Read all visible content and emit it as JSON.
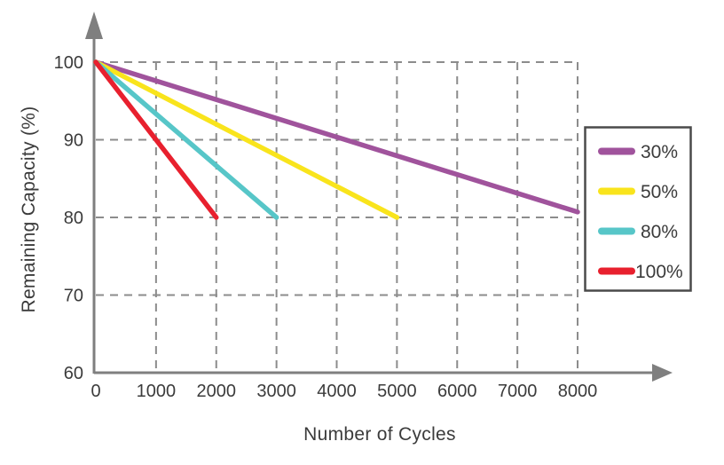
{
  "page": {
    "background": "#ffffff"
  },
  "chart_data": {
    "type": "line",
    "title": "",
    "xlabel": "Number of Cycles",
    "ylabel": "Remaining Capacity (%)",
    "xlim": [
      0,
      8000
    ],
    "ylim": [
      60,
      100
    ],
    "xticks": [
      0,
      1000,
      2000,
      3000,
      4000,
      5000,
      6000,
      7000,
      8000
    ],
    "yticks": [
      60,
      70,
      80,
      90,
      100
    ],
    "grid": "dashed",
    "legend": {
      "position": "right",
      "entries": [
        "30%",
        "50%",
        "80%",
        "100%"
      ]
    },
    "series": [
      {
        "name": "30%",
        "color": "#a0539c",
        "points": [
          [
            0,
            100
          ],
          [
            8000,
            80.7
          ]
        ]
      },
      {
        "name": "50%",
        "color": "#f9e41c",
        "points": [
          [
            0,
            100
          ],
          [
            5000,
            80
          ]
        ]
      },
      {
        "name": "80%",
        "color": "#57c6c8",
        "points": [
          [
            0,
            100
          ],
          [
            3000,
            80
          ]
        ]
      },
      {
        "name": "100%",
        "color": "#e8202e",
        "points": [
          [
            0,
            100
          ],
          [
            2000,
            80
          ]
        ]
      }
    ],
    "colors": {
      "axis": "#7f7f7f",
      "grid": "#8c8c8c",
      "text": "#3b3b3b",
      "legend_border": "#4a4a4a",
      "legend_background": "#ffffff"
    }
  }
}
